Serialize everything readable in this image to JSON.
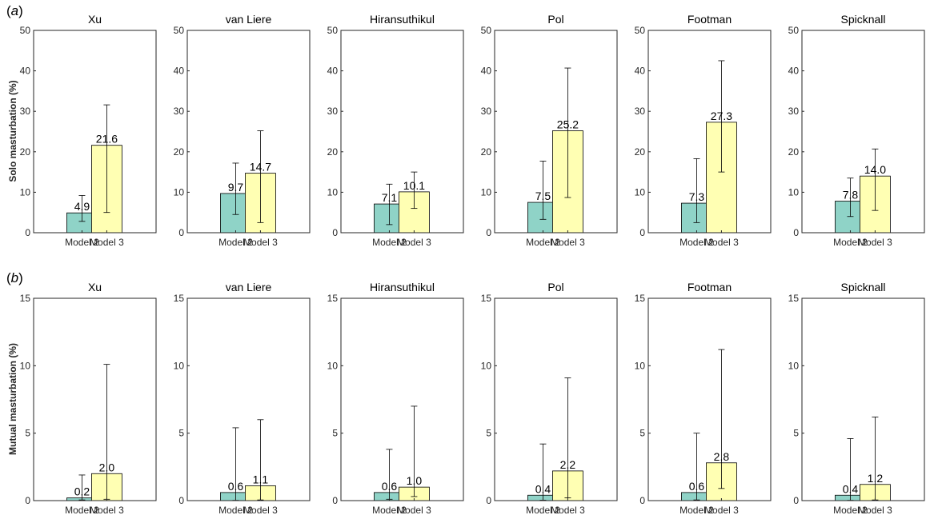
{
  "rows": [
    {
      "tag": "a",
      "ylabel": "Solo masturbation (%)"
    },
    {
      "tag": "b",
      "ylabel": "Mutual masturbation (%)"
    }
  ],
  "colors": {
    "model2": "#8fd3c7",
    "model3": "#ffffb3",
    "axis": "#262626",
    "errorbar": "#000000"
  },
  "chart_data": [
    {
      "type": "bar",
      "title": "Xu",
      "row": "a",
      "categories": [
        "Model 2",
        "Model 3"
      ],
      "values": [
        4.9,
        21.6
      ],
      "labels": [
        "4.9",
        "21.6"
      ],
      "error_low": [
        2.8,
        5.0
      ],
      "error_high": [
        9.2,
        31.6
      ],
      "ylim": [
        0,
        50
      ],
      "yticks": [
        0,
        10,
        20,
        30,
        40,
        50
      ],
      "ylabel": "Solo masturbation (%)"
    },
    {
      "type": "bar",
      "title": "van Liere",
      "row": "a",
      "categories": [
        "Model 2",
        "Model 3"
      ],
      "values": [
        9.7,
        14.7
      ],
      "labels": [
        "9.7",
        "14.7"
      ],
      "error_low": [
        4.5,
        2.5
      ],
      "error_high": [
        17.2,
        25.2
      ],
      "ylim": [
        0,
        50
      ],
      "yticks": [
        0,
        10,
        20,
        30,
        40,
        50
      ]
    },
    {
      "type": "bar",
      "title": "Hiransuthikul",
      "row": "a",
      "categories": [
        "Model 2",
        "Model 3"
      ],
      "values": [
        7.1,
        10.1
      ],
      "labels": [
        "7.1",
        "10.1"
      ],
      "error_low": [
        2.0,
        6.0
      ],
      "error_high": [
        12.0,
        15.0
      ],
      "ylim": [
        0,
        50
      ],
      "yticks": [
        0,
        10,
        20,
        30,
        40,
        50
      ]
    },
    {
      "type": "bar",
      "title": "Pol",
      "row": "a",
      "categories": [
        "Model 2",
        "Model 3"
      ],
      "values": [
        7.5,
        25.2
      ],
      "labels": [
        "7.5",
        "25.2"
      ],
      "error_low": [
        3.3,
        8.7
      ],
      "error_high": [
        17.7,
        40.7
      ],
      "ylim": [
        0,
        50
      ],
      "yticks": [
        0,
        10,
        20,
        30,
        40,
        50
      ]
    },
    {
      "type": "bar",
      "title": "Footman",
      "row": "a",
      "categories": [
        "Model 2",
        "Model 3"
      ],
      "values": [
        7.3,
        27.3
      ],
      "labels": [
        "7.3",
        "27.3"
      ],
      "error_low": [
        2.5,
        15.0
      ],
      "error_high": [
        18.3,
        42.5
      ],
      "ylim": [
        0,
        50
      ],
      "yticks": [
        0,
        10,
        20,
        30,
        40,
        50
      ]
    },
    {
      "type": "bar",
      "title": "Spicknall",
      "row": "a",
      "categories": [
        "Model 2",
        "Model 3"
      ],
      "values": [
        7.8,
        14.0
      ],
      "labels": [
        "7.8",
        "14.0"
      ],
      "error_low": [
        4.0,
        5.5
      ],
      "error_high": [
        13.5,
        20.7
      ],
      "ylim": [
        0,
        50
      ],
      "yticks": [
        0,
        10,
        20,
        30,
        40,
        50
      ]
    },
    {
      "type": "bar",
      "title": "Xu",
      "row": "b",
      "categories": [
        "Model 2",
        "Model 3"
      ],
      "values": [
        0.2,
        2.0
      ],
      "labels": [
        "0.2",
        "2.0"
      ],
      "error_low": [
        0.05,
        0.1
      ],
      "error_high": [
        1.9,
        10.1
      ],
      "ylim": [
        0,
        15
      ],
      "yticks": [
        0,
        5,
        10,
        15
      ],
      "ylabel": "Mutual masturbation (%)"
    },
    {
      "type": "bar",
      "title": "van Liere",
      "row": "b",
      "categories": [
        "Model 2",
        "Model 3"
      ],
      "values": [
        0.6,
        1.1
      ],
      "labels": [
        "0.6",
        "1.1"
      ],
      "error_low": [
        0.02,
        0.05
      ],
      "error_high": [
        5.4,
        6.0
      ],
      "ylim": [
        0,
        15
      ],
      "yticks": [
        0,
        5,
        10,
        15
      ]
    },
    {
      "type": "bar",
      "title": "Hiransuthikul",
      "row": "b",
      "categories": [
        "Model 2",
        "Model 3"
      ],
      "values": [
        0.6,
        1.0
      ],
      "labels": [
        "0.6",
        "1.0"
      ],
      "error_low": [
        0.1,
        0.3
      ],
      "error_high": [
        3.8,
        7.0
      ],
      "ylim": [
        0,
        15
      ],
      "yticks": [
        0,
        5,
        10,
        15
      ]
    },
    {
      "type": "bar",
      "title": "Pol",
      "row": "b",
      "categories": [
        "Model 2",
        "Model 3"
      ],
      "values": [
        0.4,
        2.2
      ],
      "labels": [
        "0.4",
        "2.2"
      ],
      "error_low": [
        0.03,
        0.2
      ],
      "error_high": [
        4.2,
        9.1
      ],
      "ylim": [
        0,
        15
      ],
      "yticks": [
        0,
        5,
        10,
        15
      ]
    },
    {
      "type": "bar",
      "title": "Footman",
      "row": "b",
      "categories": [
        "Model 2",
        "Model 3"
      ],
      "values": [
        0.6,
        2.8
      ],
      "labels": [
        "0.6",
        "2.8"
      ],
      "error_low": [
        0.05,
        0.9
      ],
      "error_high": [
        5.0,
        11.2
      ],
      "ylim": [
        0,
        15
      ],
      "yticks": [
        0,
        5,
        10,
        15
      ]
    },
    {
      "type": "bar",
      "title": "Spicknall",
      "row": "b",
      "categories": [
        "Model 2",
        "Model 3"
      ],
      "values": [
        0.4,
        1.2
      ],
      "labels": [
        "0.4",
        "1.2"
      ],
      "error_low": [
        0.02,
        0.05
      ],
      "error_high": [
        4.6,
        6.2
      ],
      "ylim": [
        0,
        15
      ],
      "yticks": [
        0,
        5,
        10,
        15
      ]
    }
  ]
}
